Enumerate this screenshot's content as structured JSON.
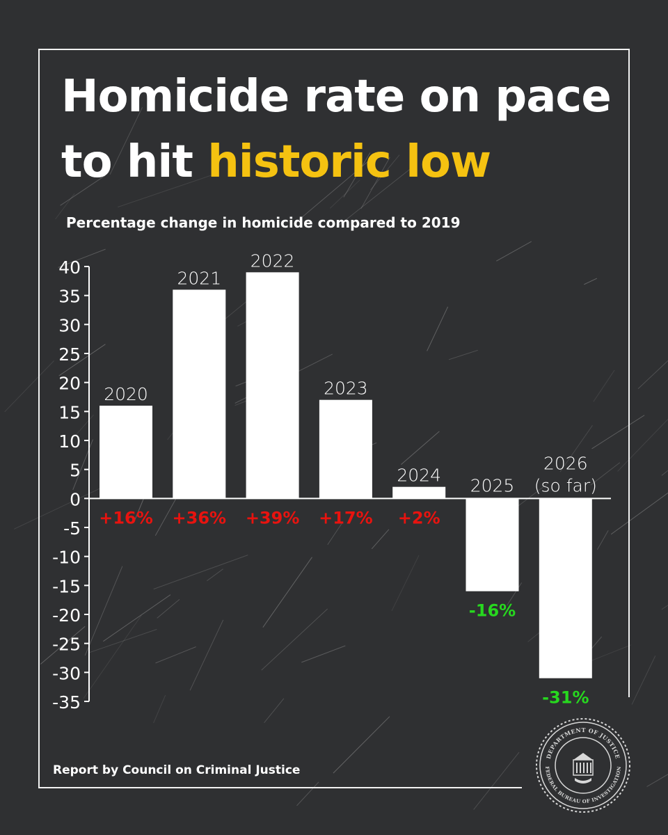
{
  "title": {
    "line1": "Homicide rate on pace",
    "line2_plain": "to hit ",
    "line2_highlight": "historic low"
  },
  "colors": {
    "background": "#2f3032",
    "highlight": "#f5c211",
    "positive_label": "#e8130f",
    "negative_label": "#27d81f",
    "bar": "#ffffff"
  },
  "chart_data": {
    "type": "bar",
    "title": "Percentage change in homicide compared to 2019",
    "categories": [
      "2020",
      "2021",
      "2022",
      "2023",
      "2024",
      "2025",
      "2026 (so far)"
    ],
    "category_label_lines": [
      [
        "2020"
      ],
      [
        "2021"
      ],
      [
        "2022"
      ],
      [
        "2023"
      ],
      [
        "2024"
      ],
      [
        "2025"
      ],
      [
        "2026",
        "(so far)"
      ]
    ],
    "values": [
      16,
      36,
      39,
      17,
      2,
      -16,
      -31
    ],
    "value_labels": [
      "+16%",
      "+36%",
      "+39%",
      "+17%",
      "+2%",
      "-16%",
      "-31%"
    ],
    "ylim": [
      -35,
      40
    ],
    "yticks": [
      40,
      35,
      30,
      25,
      20,
      15,
      10,
      5,
      0,
      -5,
      -10,
      -15,
      -20,
      -25,
      -30,
      -35
    ],
    "grid": false,
    "legend": "none"
  },
  "source": "Report by Council on Criminal Justice",
  "seal": {
    "name": "FBI seal",
    "text_top": "DEPARTMENT OF JUSTICE",
    "text_bottom": "FEDERAL BUREAU OF INVESTIGATION"
  }
}
